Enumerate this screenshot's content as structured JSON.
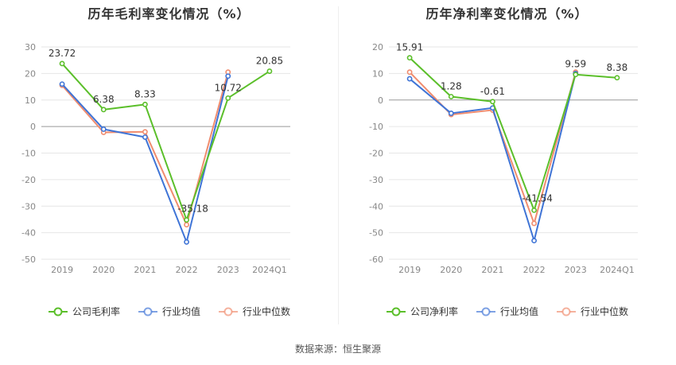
{
  "source_text": "数据来源：恒生聚源",
  "chart_data": [
    {
      "type": "line",
      "title": "历年毛利率变化情况（%）",
      "categories": [
        "2019",
        "2020",
        "2021",
        "2022",
        "2023",
        "2024Q1"
      ],
      "ylim": [
        -50,
        30
      ],
      "yticks": [
        30,
        20,
        10,
        0,
        -10,
        -20,
        -30,
        -40,
        -50
      ],
      "grid": true,
      "legend_position": "bottom",
      "series": [
        {
          "name": "公司毛利率",
          "color": "#5bbf2a",
          "values": [
            23.72,
            6.38,
            8.33,
            -35.18,
            10.72,
            20.85
          ],
          "labels": [
            "23.72",
            "6.38",
            "8.33",
            "-35.18",
            "10.72",
            "20.85"
          ]
        },
        {
          "name": "行业均值",
          "color": "#3f74d6",
          "values": [
            16.0,
            -1.0,
            -4.0,
            -43.5,
            19.0,
            null
          ]
        },
        {
          "name": "行业中位数",
          "color": "#f08c6e",
          "values": [
            15.5,
            -2.2,
            -2.0,
            -37.0,
            20.5,
            null
          ]
        }
      ]
    },
    {
      "type": "line",
      "title": "历年净利率变化情况（%）",
      "categories": [
        "2019",
        "2020",
        "2021",
        "2022",
        "2023",
        "2024Q1"
      ],
      "ylim": [
        -60,
        20
      ],
      "yticks": [
        20,
        10,
        0,
        -10,
        -20,
        -30,
        -40,
        -50,
        -60
      ],
      "grid": true,
      "legend_position": "bottom",
      "series": [
        {
          "name": "公司净利率",
          "color": "#5bbf2a",
          "values": [
            15.91,
            1.28,
            -0.61,
            -41.54,
            9.59,
            8.38
          ],
          "labels": [
            "15.91",
            "1.28",
            "-0.61",
            "-41.54",
            "9.59",
            "8.38"
          ]
        },
        {
          "name": "行业均值",
          "color": "#3f74d6",
          "values": [
            8.0,
            -5.0,
            -3.0,
            -53.0,
            10.0,
            null
          ]
        },
        {
          "name": "行业中位数",
          "color": "#f08c6e",
          "values": [
            10.5,
            -5.5,
            -3.8,
            -46.5,
            10.5,
            null
          ]
        }
      ]
    }
  ]
}
